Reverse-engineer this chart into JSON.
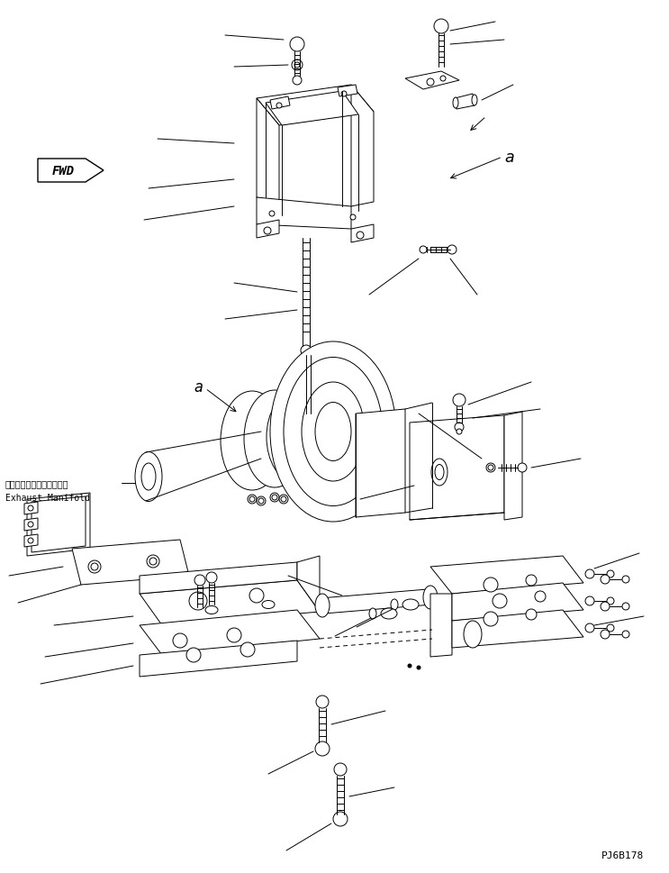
{
  "background_color": "#ffffff",
  "line_color": "#000000",
  "fig_width": 7.43,
  "fig_height": 9.7,
  "dpi": 100,
  "watermark": "PJ6B178",
  "fwd_label": "FWD",
  "label_a1": "a",
  "label_a2": "a",
  "exhaust_manifold_jp": "エキゾーストマニホールド",
  "exhaust_manifold_en": "Exhaust Manifold"
}
